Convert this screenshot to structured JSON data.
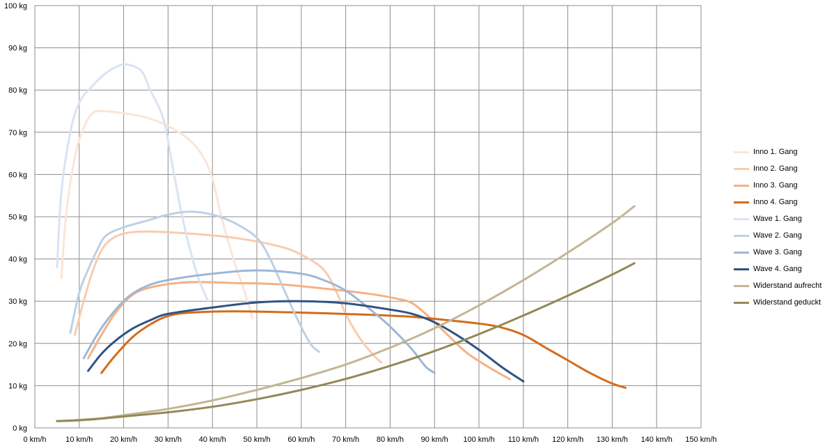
{
  "chart_data": {
    "type": "line",
    "x_unit": "km/h",
    "y_unit": "kg",
    "xlim": [
      0,
      150
    ],
    "ylim": [
      0,
      100
    ],
    "x_ticks": [
      "0 km/h",
      "10 km/h",
      "20 km/h",
      "30 km/h",
      "40 km/h",
      "50 km/h",
      "60 km/h",
      "70 km/h",
      "80 km/h",
      "90 km/h",
      "100 km/h",
      "110 km/h",
      "120 km/h",
      "130 km/h",
      "140 km/h",
      "150 km/h"
    ],
    "y_ticks": [
      "0 kg",
      "10 kg",
      "20 kg",
      "30 kg",
      "40 kg",
      "50 kg",
      "60 kg",
      "70 kg",
      "80 kg",
      "90 kg",
      "100 kg"
    ],
    "grid": true,
    "legend_position": "right",
    "series": [
      {
        "name": "Inno 1. Gang",
        "color": "#fbe5d6",
        "points": [
          [
            6,
            35.5
          ],
          [
            7,
            50
          ],
          [
            9,
            64
          ],
          [
            11,
            71
          ],
          [
            13,
            74.5
          ],
          [
            15,
            75
          ],
          [
            20,
            74.5
          ],
          [
            25,
            73.5
          ],
          [
            30,
            71.5
          ],
          [
            35,
            68
          ],
          [
            38,
            64
          ],
          [
            40,
            59
          ],
          [
            42,
            50
          ],
          [
            45,
            39
          ],
          [
            47,
            33
          ],
          [
            49,
            26
          ]
        ]
      },
      {
        "name": "Inno 2. Gang",
        "color": "#f8cbad",
        "points": [
          [
            9,
            22
          ],
          [
            11,
            30
          ],
          [
            13,
            37
          ],
          [
            15,
            42
          ],
          [
            17,
            44.5
          ],
          [
            20,
            46
          ],
          [
            25,
            46.5
          ],
          [
            35,
            46
          ],
          [
            45,
            45
          ],
          [
            55,
            43
          ],
          [
            60,
            41
          ],
          [
            65,
            37.5
          ],
          [
            68,
            32
          ],
          [
            70,
            27
          ],
          [
            73,
            21.5
          ],
          [
            76,
            17.5
          ],
          [
            78,
            15.5
          ]
        ]
      },
      {
        "name": "Inno 3. Gang",
        "color": "#f4b183",
        "points": [
          [
            12,
            16.5
          ],
          [
            15,
            22
          ],
          [
            18,
            27
          ],
          [
            22,
            31.5
          ],
          [
            27,
            33.5
          ],
          [
            35,
            34.5
          ],
          [
            45,
            34.3
          ],
          [
            55,
            34
          ],
          [
            65,
            33
          ],
          [
            75,
            31.8
          ],
          [
            82,
            30.5
          ],
          [
            85,
            29.5
          ],
          [
            88,
            27
          ],
          [
            92,
            23
          ],
          [
            97,
            18
          ],
          [
            102,
            14.5
          ],
          [
            107,
            11.5
          ]
        ]
      },
      {
        "name": "Inno 4. Gang",
        "color": "#d46b1a",
        "points": [
          [
            15,
            13
          ],
          [
            18,
            17
          ],
          [
            22,
            21.5
          ],
          [
            26,
            24.5
          ],
          [
            30,
            26.5
          ],
          [
            35,
            27.3
          ],
          [
            45,
            27.6
          ],
          [
            60,
            27.3
          ],
          [
            75,
            26.8
          ],
          [
            85,
            26.3
          ],
          [
            93,
            25.5
          ],
          [
            100,
            24.7
          ],
          [
            105,
            23.8
          ],
          [
            110,
            22
          ],
          [
            115,
            19
          ],
          [
            120,
            16
          ],
          [
            125,
            13
          ],
          [
            130,
            10.5
          ],
          [
            133,
            9.5
          ]
        ]
      },
      {
        "name": "Wave 1. Gang",
        "color": "#dae3f3",
        "points": [
          [
            5,
            38
          ],
          [
            6,
            56
          ],
          [
            8,
            70
          ],
          [
            10,
            77
          ],
          [
            13,
            81
          ],
          [
            16,
            84
          ],
          [
            19,
            85.8
          ],
          [
            21,
            86
          ],
          [
            24,
            84.5
          ],
          [
            26,
            80
          ],
          [
            29,
            73
          ],
          [
            31,
            62
          ],
          [
            33,
            51
          ],
          [
            35,
            42
          ],
          [
            37,
            35
          ],
          [
            39,
            30
          ]
        ]
      },
      {
        "name": "Wave 2. Gang",
        "color": "#bdd0e5",
        "points": [
          [
            8,
            22.5
          ],
          [
            10,
            32
          ],
          [
            12,
            37.5
          ],
          [
            14,
            42
          ],
          [
            16,
            45.5
          ],
          [
            20,
            47.5
          ],
          [
            25,
            49
          ],
          [
            30,
            50.5
          ],
          [
            35,
            51.2
          ],
          [
            40,
            50.5
          ],
          [
            45,
            48.5
          ],
          [
            50,
            45
          ],
          [
            53,
            40
          ],
          [
            56,
            33
          ],
          [
            59,
            26
          ],
          [
            62,
            20
          ],
          [
            64,
            18
          ]
        ]
      },
      {
        "name": "Wave 3. Gang",
        "color": "#9db7d5",
        "points": [
          [
            11,
            16.5
          ],
          [
            14,
            22
          ],
          [
            17,
            26.5
          ],
          [
            21,
            31
          ],
          [
            25,
            33.5
          ],
          [
            30,
            35
          ],
          [
            40,
            36.5
          ],
          [
            50,
            37.3
          ],
          [
            60,
            36.5
          ],
          [
            65,
            35
          ],
          [
            70,
            32.5
          ],
          [
            75,
            28.5
          ],
          [
            80,
            24
          ],
          [
            85,
            18.5
          ],
          [
            88,
            14.5
          ],
          [
            90,
            13
          ]
        ]
      },
      {
        "name": "Wave 4. Gang",
        "color": "#2f5383",
        "points": [
          [
            12,
            13.5
          ],
          [
            15,
            17.5
          ],
          [
            18,
            20.5
          ],
          [
            22,
            23.5
          ],
          [
            26,
            25.5
          ],
          [
            30,
            27
          ],
          [
            40,
            28.5
          ],
          [
            50,
            29.7
          ],
          [
            60,
            30
          ],
          [
            70,
            29.5
          ],
          [
            80,
            28
          ],
          [
            85,
            27
          ],
          [
            90,
            25
          ],
          [
            95,
            22
          ],
          [
            100,
            18.5
          ],
          [
            105,
            14.5
          ],
          [
            110,
            11
          ]
        ]
      },
      {
        "name": "Widerstand aufrecht",
        "color": "#c4b594",
        "points": [
          [
            5,
            1.6
          ],
          [
            10,
            1.9
          ],
          [
            15,
            2.3
          ],
          [
            20,
            3
          ],
          [
            30,
            4.5
          ],
          [
            40,
            6.5
          ],
          [
            50,
            9
          ],
          [
            60,
            11.8
          ],
          [
            70,
            15
          ],
          [
            80,
            19
          ],
          [
            90,
            23.6
          ],
          [
            100,
            29
          ],
          [
            110,
            35
          ],
          [
            120,
            41.5
          ],
          [
            130,
            48.5
          ],
          [
            135,
            52.5
          ]
        ]
      },
      {
        "name": "Widerstand geduckt",
        "color": "#938857",
        "points": [
          [
            5,
            1.6
          ],
          [
            10,
            1.8
          ],
          [
            15,
            2.2
          ],
          [
            20,
            2.7
          ],
          [
            30,
            3.7
          ],
          [
            40,
            5
          ],
          [
            50,
            6.8
          ],
          [
            60,
            9
          ],
          [
            70,
            11.6
          ],
          [
            80,
            14.7
          ],
          [
            90,
            18.2
          ],
          [
            100,
            22.2
          ],
          [
            110,
            26.6
          ],
          [
            120,
            31.3
          ],
          [
            130,
            36.3
          ],
          [
            135,
            39
          ]
        ]
      }
    ]
  }
}
